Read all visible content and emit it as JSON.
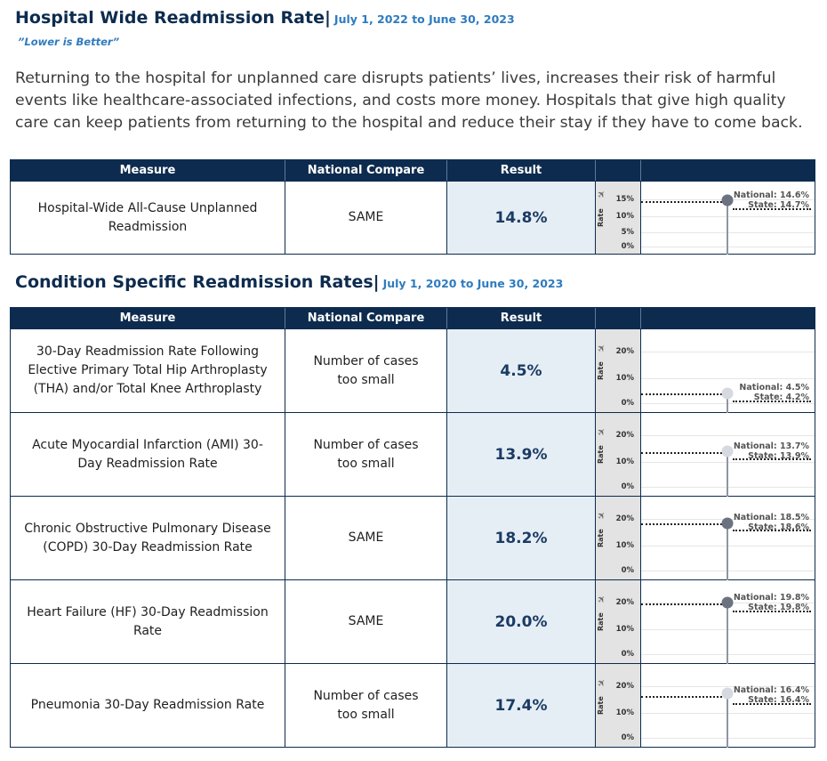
{
  "header": {
    "title": "Hospital Wide Readmission Rate|",
    "date_range": "July 1, 2022 to June 30, 2023",
    "note": "”Lower is Better”",
    "intro": "Returning to the hospital for unplanned care disrupts patients’ lives, increases their risk of harmful events like healthcare-associated infections, and costs more money. Hospitals that give high quality care can keep patients from returning to the hospital and reduce their stay if they have to come back."
  },
  "columns": {
    "measure": "Measure",
    "compare": "National Compare",
    "result": "Result"
  },
  "axis": {
    "title": "Rate",
    "pin_icon": "pin-icon"
  },
  "hospital_wide": {
    "rows": [
      {
        "measure": "Hospital-Wide All-Cause Unplanned Readmission",
        "compare": "SAME",
        "result": "14.8%",
        "ticks": [
          "15%",
          "10%",
          "5%",
          "0%"
        ],
        "axis_max": 16.5,
        "value": 14.8,
        "national": 14.6,
        "state": 14.7,
        "national_label": "National: 14.6%",
        "state_label": "State: 14.7%",
        "marker": "dark"
      }
    ]
  },
  "condition_specific": {
    "title": "Condition Specific Readmission Rates|",
    "date_range": "July 1, 2020 to June 30, 2023",
    "rows": [
      {
        "measure": "30-Day Readmission Rate Following Elective Primary Total Hip Arthroplasty (THA) and/or Total Knee Arthroplasty",
        "compare": "Number of cases too small",
        "result": "4.5%",
        "ticks": [
          "20%",
          "10%",
          "0%"
        ],
        "axis_max": 21,
        "value": 4.5,
        "national": 4.5,
        "state": 4.2,
        "national_label": "National: 4.5%",
        "state_label": "State: 4.2%",
        "marker": "light"
      },
      {
        "measure": "Acute Myocardial Infarction (AMI) 30-Day Readmission Rate",
        "compare": "Number of cases too small",
        "result": "13.9%",
        "ticks": [
          "20%",
          "10%",
          "0%"
        ],
        "axis_max": 21,
        "value": 13.9,
        "national": 13.7,
        "state": 13.9,
        "national_label": "National: 13.7%",
        "state_label": "State: 13.9%",
        "marker": "light"
      },
      {
        "measure": "Chronic Obstructive Pulmonary Disease (COPD) 30-Day Readmission Rate",
        "compare": "SAME",
        "result": "18.2%",
        "ticks": [
          "20%",
          "10%",
          "0%"
        ],
        "axis_max": 21,
        "value": 18.2,
        "national": 18.5,
        "state": 18.6,
        "national_label": "National: 18.5%",
        "state_label": "State: 18.6%",
        "marker": "dark"
      },
      {
        "measure": "Heart Failure (HF) 30-Day Readmission Rate",
        "compare": "SAME",
        "result": "20.0%",
        "ticks": [
          "20%",
          "10%",
          "0%"
        ],
        "axis_max": 21,
        "value": 20.0,
        "national": 19.8,
        "state": 19.8,
        "national_label": "National: 19.8%",
        "state_label": "State: 19.8%",
        "marker": "dark"
      },
      {
        "measure": "Pneumonia 30-Day Readmission Rate",
        "compare": "Number of cases too small",
        "result": "17.4%",
        "ticks": [
          "20%",
          "10%",
          "0%"
        ],
        "axis_max": 21,
        "value": 17.4,
        "national": 16.4,
        "state": 16.4,
        "national_label": "National: 16.4%",
        "state_label": "State: 16.4%",
        "marker": "light"
      }
    ]
  }
}
